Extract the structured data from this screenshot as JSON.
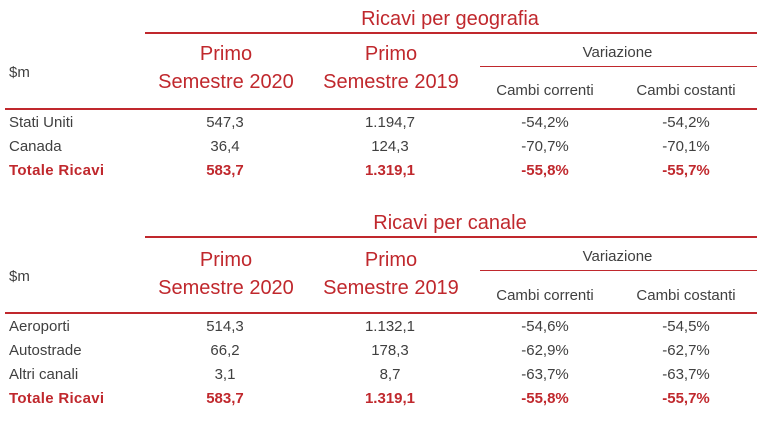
{
  "geo": {
    "title": "Ricavi per geografia",
    "unit": "$m",
    "col1": [
      "Primo",
      "Semestre 2020"
    ],
    "col2": [
      "Primo",
      "Semestre 2019"
    ],
    "variation": "Variazione",
    "sub1": "Cambi correnti",
    "sub2": "Cambi costanti",
    "rows": [
      {
        "label": "Stati Uniti",
        "v1": "547,3",
        "v2": "1.194,7",
        "v3": "-54,2%",
        "v4": "-54,2%"
      },
      {
        "label": "Canada",
        "v1": "36,4",
        "v2": "124,3",
        "v3": "-70,7%",
        "v4": "-70,1%"
      }
    ],
    "total": {
      "label": "Totale Ricavi",
      "v1": "583,7",
      "v2": "1.319,1",
      "v3": "-55,8%",
      "v4": "-55,7%"
    }
  },
  "chan": {
    "title": "Ricavi per canale",
    "unit": "$m",
    "col1": [
      "Primo",
      "Semestre 2020"
    ],
    "col2": [
      "Primo",
      "Semestre 2019"
    ],
    "variation": "Variazione",
    "sub1": "Cambi correnti",
    "sub2": "Cambi costanti",
    "rows": [
      {
        "label": "Aeroporti",
        "v1": "514,3",
        "v2": "1.132,1",
        "v3": "-54,6%",
        "v4": "-54,5%"
      },
      {
        "label": "Autostrade",
        "v1": "66,2",
        "v2": "178,3",
        "v3": "-62,9%",
        "v4": "-62,7%"
      },
      {
        "label": "Altri canali",
        "v1": "3,1",
        "v2": "8,7",
        "v3": "-63,7%",
        "v4": "-63,7%"
      }
    ],
    "total": {
      "label": "Totale Ricavi",
      "v1": "583,7",
      "v2": "1.319,1",
      "v3": "-55,8%",
      "v4": "-55,7%"
    }
  }
}
